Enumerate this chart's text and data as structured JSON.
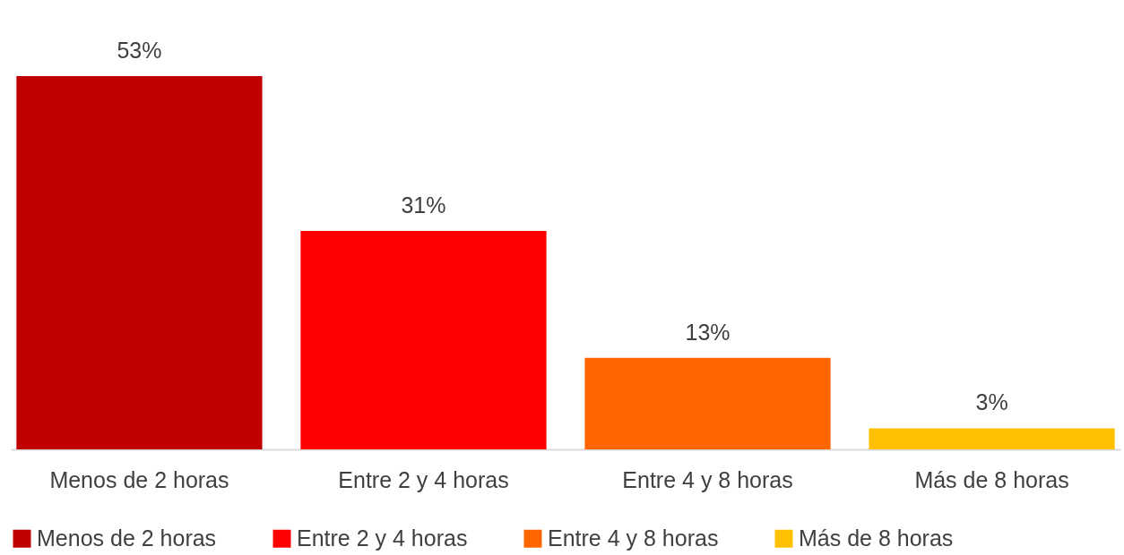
{
  "chart_data": {
    "type": "bar",
    "categories": [
      "Menos de 2 horas",
      "Entre 2 y 4 horas",
      "Entre 4 y 8 horas",
      "Más de 8 horas"
    ],
    "series": [
      {
        "name": "Menos de 2 horas",
        "color": "#c00000",
        "values": [
          53,
          null,
          null,
          null
        ],
        "value_labels": [
          "53%",
          null,
          null,
          null
        ]
      },
      {
        "name": "Entre 2 y 4 horas",
        "color": "#ff0000",
        "values": [
          null,
          31,
          null,
          null
        ],
        "value_labels": [
          null,
          "31%",
          null,
          null
        ]
      },
      {
        "name": "Entre 4 y 8 horas",
        "color": "#ff6600",
        "values": [
          null,
          null,
          13,
          null
        ],
        "value_labels": [
          null,
          null,
          "13%",
          null
        ]
      },
      {
        "name": "Más de 8 horas",
        "color": "#ffc000",
        "values": [
          null,
          null,
          null,
          3
        ],
        "value_labels": [
          null,
          null,
          null,
          "3%"
        ]
      }
    ],
    "legend": "bottom"
  }
}
